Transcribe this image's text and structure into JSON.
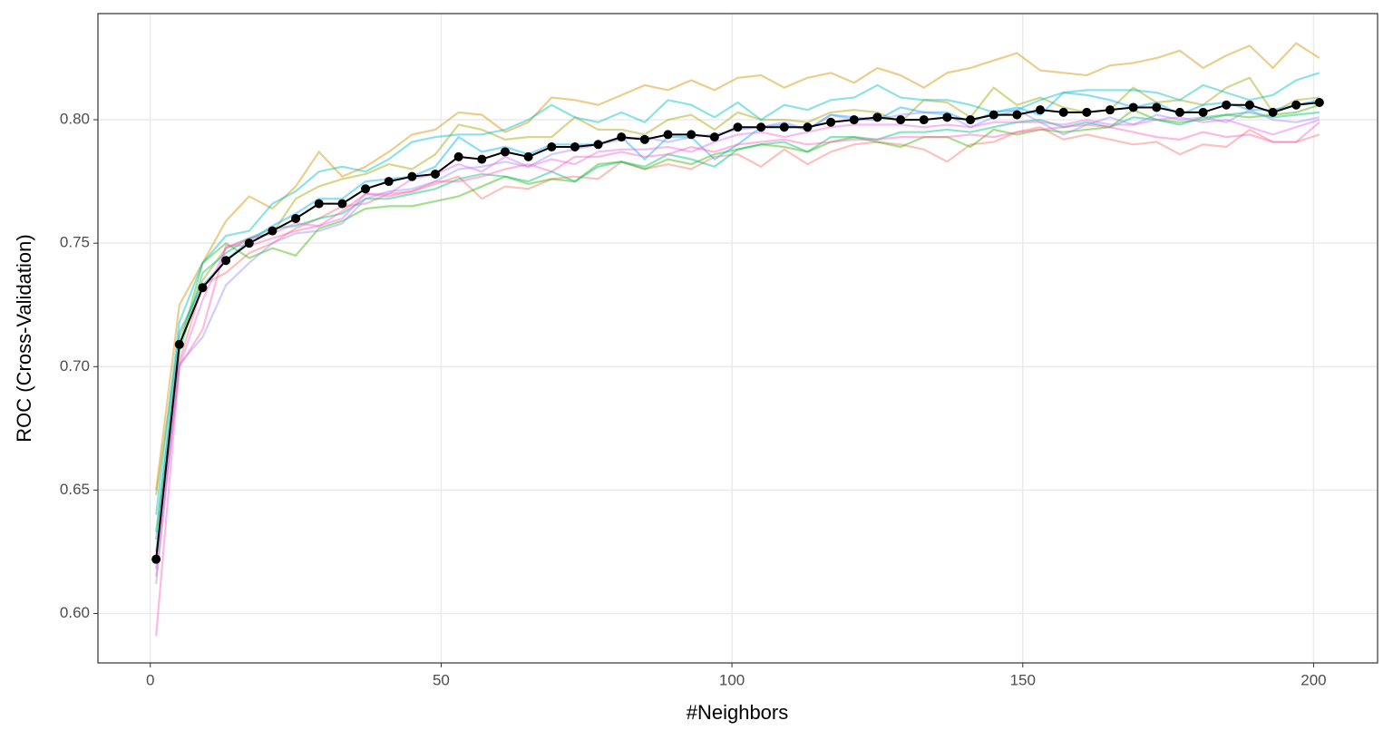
{
  "chart_data": {
    "type": "line",
    "xlabel": "#Neighbors",
    "ylabel": "ROC (Cross-Validation)",
    "x": [
      1,
      5,
      9,
      13,
      17,
      21,
      25,
      29,
      33,
      37,
      41,
      45,
      49,
      53,
      57,
      61,
      65,
      69,
      73,
      77,
      81,
      85,
      89,
      93,
      97,
      101,
      105,
      109,
      113,
      117,
      121,
      125,
      129,
      133,
      137,
      141,
      145,
      149,
      153,
      157,
      161,
      165,
      169,
      173,
      177,
      181,
      185,
      189,
      193,
      197,
      201
    ],
    "xlim": [
      -9,
      211
    ],
    "xticks": [
      0,
      50,
      100,
      150,
      200
    ],
    "ylim": [
      0.58,
      0.843
    ],
    "yticks": [
      {
        "value": 0.6,
        "label": "0.60"
      },
      0.65,
      {
        "value": 0.7,
        "label": "0.70"
      },
      0.75,
      {
        "value": 0.8,
        "label": "0.80"
      }
    ],
    "grid": true,
    "series": [
      {
        "color": "#F8766D",
        "alpha": 0.45,
        "values": [
          0.615,
          0.702,
          0.733,
          0.738,
          0.746,
          0.75,
          0.756,
          0.76,
          0.765,
          0.766,
          0.77,
          0.771,
          0.774,
          0.777,
          0.768,
          0.773,
          0.772,
          0.776,
          0.777,
          0.776,
          0.783,
          0.78,
          0.782,
          0.78,
          0.785,
          0.786,
          0.781,
          0.788,
          0.782,
          0.787,
          0.79,
          0.791,
          0.79,
          0.788,
          0.783,
          0.79,
          0.791,
          0.795,
          0.797,
          0.792,
          0.794,
          0.792,
          0.79,
          0.791,
          0.786,
          0.79,
          0.789,
          0.796,
          0.791,
          0.791,
          0.794
        ]
      },
      {
        "color": "#D89000",
        "alpha": 0.45,
        "values": [
          0.65,
          0.725,
          0.742,
          0.759,
          0.769,
          0.764,
          0.773,
          0.787,
          0.777,
          0.781,
          0.787,
          0.794,
          0.796,
          0.803,
          0.802,
          0.795,
          0.799,
          0.809,
          0.808,
          0.806,
          0.81,
          0.814,
          0.812,
          0.816,
          0.812,
          0.817,
          0.818,
          0.813,
          0.817,
          0.819,
          0.815,
          0.821,
          0.818,
          0.813,
          0.819,
          0.821,
          0.824,
          0.827,
          0.82,
          0.819,
          0.818,
          0.822,
          0.823,
          0.825,
          0.828,
          0.821,
          0.826,
          0.83,
          0.821,
          0.831,
          0.825
        ]
      },
      {
        "color": "#A3A500",
        "alpha": 0.45,
        "values": [
          0.648,
          0.712,
          0.735,
          0.748,
          0.752,
          0.754,
          0.768,
          0.773,
          0.776,
          0.778,
          0.782,
          0.78,
          0.786,
          0.798,
          0.796,
          0.792,
          0.793,
          0.793,
          0.801,
          0.796,
          0.796,
          0.794,
          0.8,
          0.802,
          0.796,
          0.803,
          0.8,
          0.8,
          0.799,
          0.803,
          0.804,
          0.803,
          0.799,
          0.808,
          0.807,
          0.801,
          0.813,
          0.806,
          0.809,
          0.805,
          0.803,
          0.804,
          0.813,
          0.807,
          0.808,
          0.806,
          0.813,
          0.817,
          0.803,
          0.808,
          0.809
        ]
      },
      {
        "color": "#39B600",
        "alpha": 0.45,
        "values": [
          0.633,
          0.708,
          0.742,
          0.75,
          0.744,
          0.748,
          0.745,
          0.756,
          0.759,
          0.764,
          0.765,
          0.765,
          0.767,
          0.769,
          0.773,
          0.777,
          0.774,
          0.776,
          0.775,
          0.782,
          0.783,
          0.78,
          0.784,
          0.782,
          0.786,
          0.788,
          0.79,
          0.789,
          0.787,
          0.791,
          0.793,
          0.791,
          0.789,
          0.793,
          0.793,
          0.789,
          0.796,
          0.794,
          0.796,
          0.795,
          0.796,
          0.797,
          0.804,
          0.8,
          0.799,
          0.8,
          0.802,
          0.801,
          0.802,
          0.803,
          0.806
        ]
      },
      {
        "color": "#00BF7D",
        "alpha": 0.45,
        "values": [
          0.625,
          0.706,
          0.738,
          0.746,
          0.752,
          0.756,
          0.757,
          0.76,
          0.762,
          0.768,
          0.768,
          0.77,
          0.772,
          0.776,
          0.778,
          0.777,
          0.775,
          0.779,
          0.775,
          0.781,
          0.783,
          0.781,
          0.786,
          0.784,
          0.781,
          0.788,
          0.79,
          0.791,
          0.787,
          0.793,
          0.793,
          0.792,
          0.795,
          0.795,
          0.796,
          0.795,
          0.797,
          0.799,
          0.8,
          0.797,
          0.799,
          0.797,
          0.801,
          0.8,
          0.798,
          0.801,
          0.802,
          0.803,
          0.801,
          0.802,
          0.803
        ]
      },
      {
        "color": "#00BFC4",
        "alpha": 0.45,
        "values": [
          0.64,
          0.718,
          0.742,
          0.753,
          0.755,
          0.766,
          0.771,
          0.779,
          0.781,
          0.779,
          0.784,
          0.791,
          0.793,
          0.794,
          0.794,
          0.796,
          0.8,
          0.806,
          0.801,
          0.799,
          0.803,
          0.799,
          0.808,
          0.806,
          0.801,
          0.807,
          0.8,
          0.806,
          0.804,
          0.808,
          0.809,
          0.814,
          0.809,
          0.808,
          0.808,
          0.806,
          0.803,
          0.804,
          0.808,
          0.811,
          0.812,
          0.812,
          0.812,
          0.811,
          0.808,
          0.814,
          0.811,
          0.808,
          0.81,
          0.816,
          0.819
        ]
      },
      {
        "color": "#00B0F6",
        "alpha": 0.45,
        "values": [
          0.63,
          0.714,
          0.733,
          0.743,
          0.751,
          0.757,
          0.762,
          0.768,
          0.768,
          0.775,
          0.776,
          0.777,
          0.781,
          0.793,
          0.787,
          0.789,
          0.786,
          0.79,
          0.79,
          0.79,
          0.793,
          0.784,
          0.793,
          0.793,
          0.784,
          0.79,
          0.797,
          0.798,
          0.796,
          0.802,
          0.801,
          0.8,
          0.805,
          0.803,
          0.803,
          0.799,
          0.803,
          0.805,
          0.802,
          0.811,
          0.81,
          0.808,
          0.805,
          0.807,
          0.802,
          0.806,
          0.807,
          0.804,
          0.804,
          0.806,
          0.808
        ]
      },
      {
        "color": "#9590FF",
        "alpha": 0.45,
        "values": [
          0.612,
          0.701,
          0.712,
          0.733,
          0.742,
          0.75,
          0.754,
          0.755,
          0.758,
          0.768,
          0.771,
          0.772,
          0.775,
          0.78,
          0.781,
          0.783,
          0.781,
          0.786,
          0.788,
          0.79,
          0.792,
          0.793,
          0.791,
          0.793,
          0.794,
          0.796,
          0.797,
          0.799,
          0.796,
          0.802,
          0.8,
          0.8,
          0.802,
          0.803,
          0.802,
          0.797,
          0.801,
          0.804,
          0.799,
          0.794,
          0.798,
          0.801,
          0.798,
          0.802,
          0.8,
          0.801,
          0.799,
          0.804,
          0.8,
          0.799,
          0.801
        ]
      },
      {
        "color": "#E76BF3",
        "alpha": 0.45,
        "values": [
          0.618,
          0.7,
          0.727,
          0.748,
          0.752,
          0.754,
          0.758,
          0.757,
          0.76,
          0.77,
          0.77,
          0.776,
          0.778,
          0.782,
          0.779,
          0.785,
          0.781,
          0.784,
          0.782,
          0.787,
          0.788,
          0.788,
          0.789,
          0.787,
          0.791,
          0.794,
          0.795,
          0.793,
          0.795,
          0.797,
          0.798,
          0.798,
          0.798,
          0.797,
          0.798,
          0.797,
          0.799,
          0.799,
          0.799,
          0.798,
          0.8,
          0.798,
          0.798,
          0.8,
          0.801,
          0.799,
          0.8,
          0.797,
          0.794,
          0.797,
          0.8
        ]
      },
      {
        "color": "#FF62BC",
        "alpha": 0.45,
        "values": [
          0.591,
          0.7,
          0.715,
          0.749,
          0.749,
          0.752,
          0.755,
          0.757,
          0.763,
          0.77,
          0.769,
          0.771,
          0.775,
          0.775,
          0.777,
          0.78,
          0.782,
          0.779,
          0.785,
          0.785,
          0.787,
          0.785,
          0.786,
          0.789,
          0.787,
          0.79,
          0.791,
          0.792,
          0.79,
          0.791,
          0.792,
          0.792,
          0.793,
          0.793,
          0.793,
          0.794,
          0.793,
          0.795,
          0.796,
          0.797,
          0.798,
          0.797,
          0.795,
          0.793,
          0.792,
          0.795,
          0.793,
          0.794,
          0.791,
          0.791,
          0.799
        ]
      },
      {
        "color": "#000000",
        "alpha": 1,
        "markers": true,
        "values": [
          0.622,
          0.709,
          0.732,
          0.743,
          0.75,
          0.755,
          0.76,
          0.766,
          0.766,
          0.772,
          0.775,
          0.777,
          0.778,
          0.785,
          0.784,
          0.787,
          0.785,
          0.789,
          0.789,
          0.79,
          0.793,
          0.792,
          0.794,
          0.794,
          0.793,
          0.797,
          0.797,
          0.797,
          0.797,
          0.799,
          0.8,
          0.801,
          0.8,
          0.8,
          0.801,
          0.8,
          0.802,
          0.802,
          0.804,
          0.803,
          0.803,
          0.804,
          0.805,
          0.805,
          0.803,
          0.803,
          0.806,
          0.806,
          0.803,
          0.806,
          0.807
        ]
      }
    ]
  }
}
